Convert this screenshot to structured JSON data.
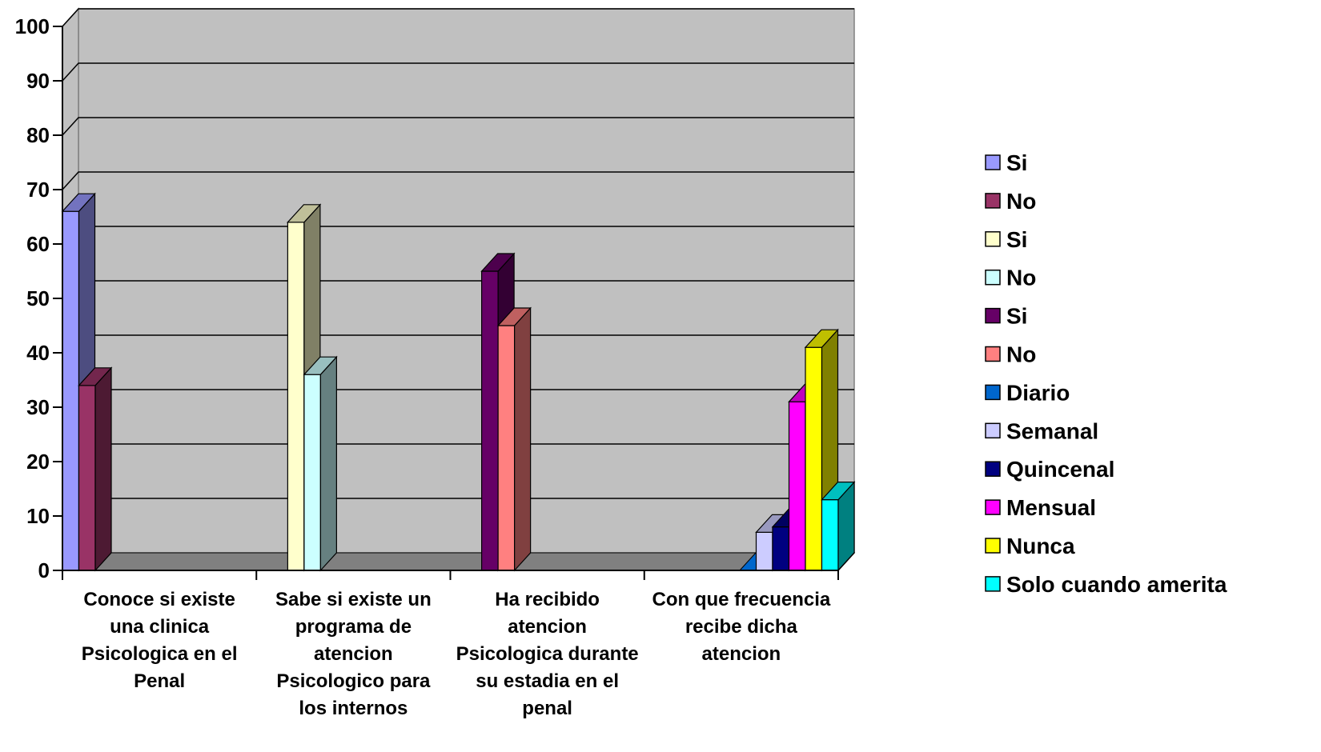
{
  "chart_data": {
    "type": "bar",
    "title": "",
    "xlabel": "",
    "ylabel": "",
    "ylim": [
      0,
      100
    ],
    "yticks": [
      0,
      10,
      20,
      30,
      40,
      50,
      60,
      70,
      80,
      90,
      100
    ],
    "grid": true,
    "legend_position": "right",
    "background_color": "#c0c0c0",
    "floor_color": "#808080",
    "groups": [
      {
        "label_lines": [
          "Conoce si existe",
          "una clinica",
          "Psicologica en el",
          "Penal"
        ],
        "series": [
          0,
          1
        ]
      },
      {
        "label_lines": [
          "Sabe si existe un",
          "programa de",
          "atencion",
          "Psicologico para",
          "los internos"
        ],
        "series": [
          2,
          3
        ]
      },
      {
        "label_lines": [
          "Ha recibido",
          "atencion",
          "Psicologica durante",
          "su estadia en el",
          "penal"
        ],
        "series": [
          4,
          5
        ]
      },
      {
        "label_lines": [
          "Con que frecuencia",
          "recibe dicha",
          "atencion"
        ],
        "series": [
          6,
          7,
          8,
          9,
          10,
          11
        ]
      }
    ],
    "series": [
      {
        "name": "Si",
        "value": 66,
        "color": "#9999ff"
      },
      {
        "name": "No",
        "value": 34,
        "color": "#993366"
      },
      {
        "name": "Si",
        "value": 64,
        "color": "#ffffcc"
      },
      {
        "name": "No",
        "value": 36,
        "color": "#ccffff"
      },
      {
        "name": "Si",
        "value": 55,
        "color": "#660066"
      },
      {
        "name": "No",
        "value": 45,
        "color": "#ff8080"
      },
      {
        "name": "Diario",
        "value": 0,
        "color": "#0066cc"
      },
      {
        "name": "Semanal",
        "value": 7,
        "color": "#ccccff"
      },
      {
        "name": "Quincenal",
        "value": 8,
        "color": "#000080"
      },
      {
        "name": "Mensual",
        "value": 31,
        "color": "#ff00ff"
      },
      {
        "name": "Nunca",
        "value": 41,
        "color": "#ffff00"
      },
      {
        "name": "Solo cuando amerita",
        "value": 13,
        "color": "#00ffff"
      }
    ]
  }
}
